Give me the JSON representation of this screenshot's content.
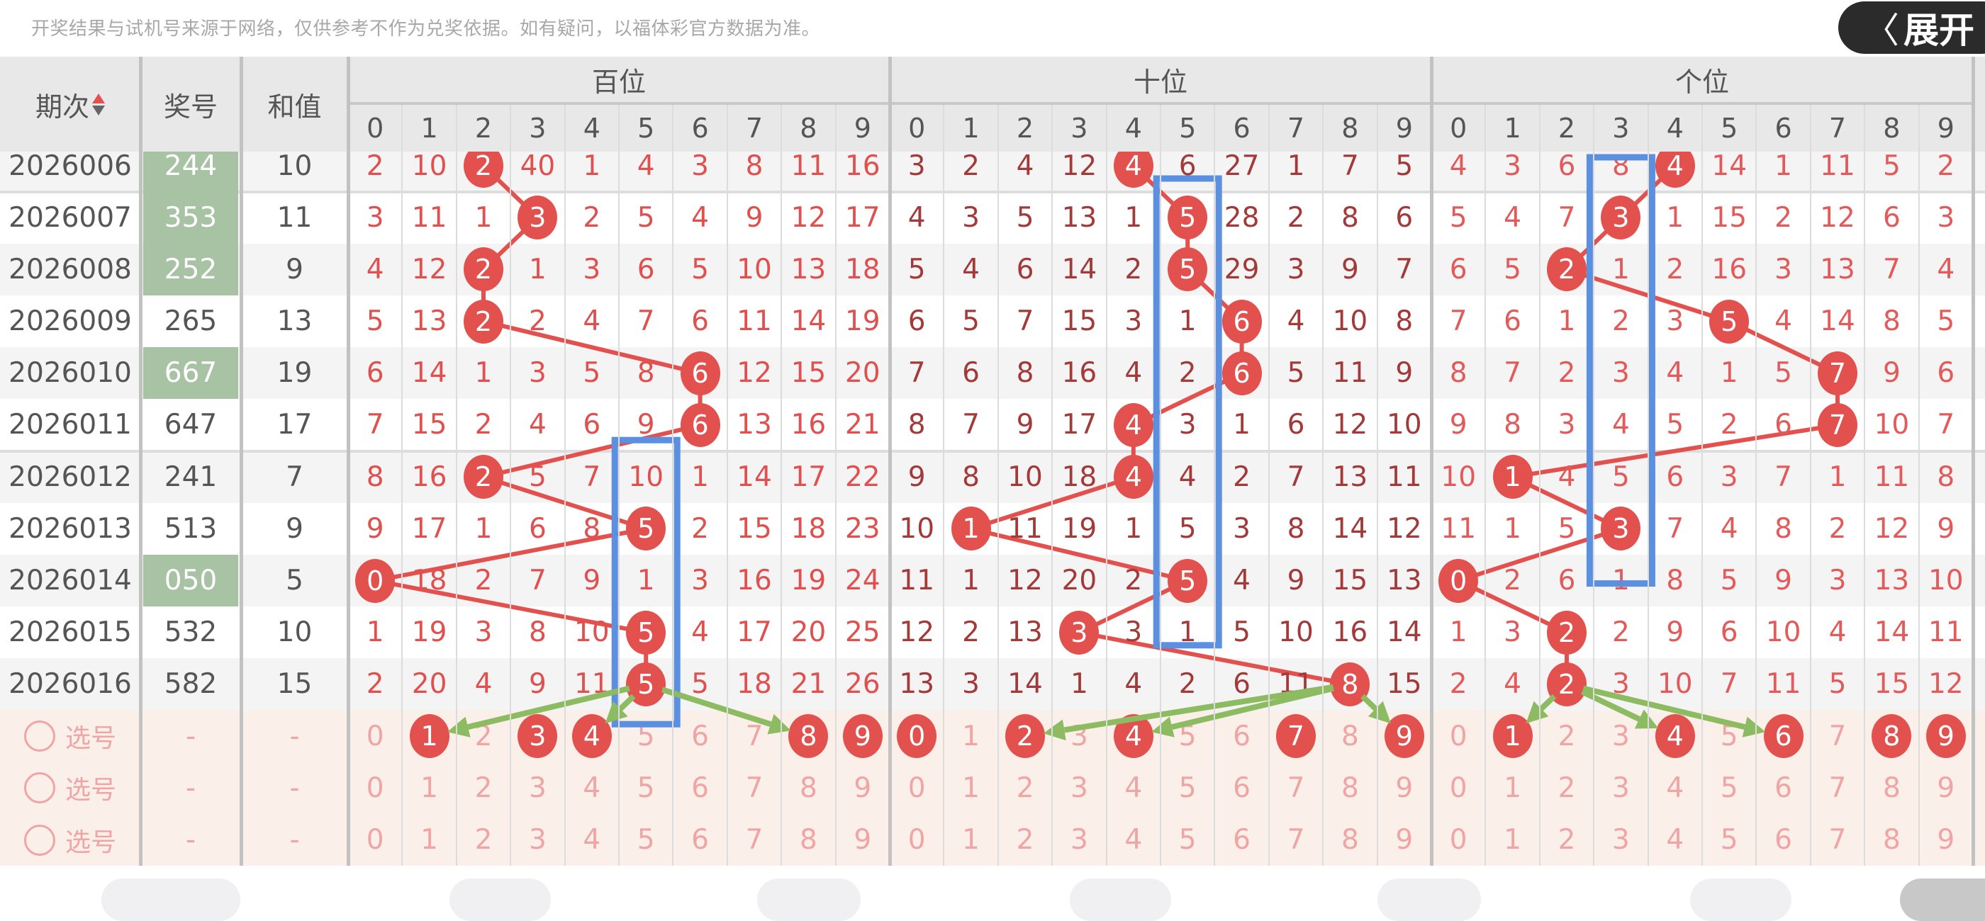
{
  "notice": "开奖结果与试机号来源于网络，仅供参考不作为兑奖依据。如有疑问，以福体彩官方数据为准。",
  "header": {
    "period": "期次",
    "number": "奖号",
    "sum": "和值",
    "positions": [
      "百位",
      "十位",
      "个位"
    ],
    "digits": [
      "0",
      "1",
      "2",
      "3",
      "4",
      "5",
      "6",
      "7",
      "8",
      "9"
    ],
    "sort_icon": "sort-up-down-icon"
  },
  "rows": [
    {
      "period": "2026006",
      "number": "244",
      "sum": "10",
      "highlight": true,
      "hundreds": [
        2,
        10,
        2,
        40,
        1,
        4,
        3,
        8,
        11,
        16
      ],
      "tens": [
        3,
        2,
        4,
        12,
        4,
        6,
        27,
        1,
        7,
        5
      ],
      "units": [
        4,
        3,
        6,
        8,
        4,
        14,
        1,
        11,
        5,
        2
      ]
    },
    {
      "period": "2026007",
      "number": "353",
      "sum": "11",
      "highlight": true,
      "hundreds": [
        3,
        11,
        1,
        3,
        2,
        5,
        4,
        9,
        12,
        17
      ],
      "tens": [
        4,
        3,
        5,
        13,
        1,
        5,
        28,
        2,
        8,
        6
      ],
      "units": [
        5,
        4,
        7,
        3,
        1,
        15,
        2,
        12,
        6,
        3
      ]
    },
    {
      "period": "2026008",
      "number": "252",
      "sum": "9",
      "highlight": true,
      "hundreds": [
        4,
        12,
        2,
        1,
        3,
        6,
        5,
        10,
        13,
        18
      ],
      "tens": [
        5,
        4,
        6,
        14,
        2,
        5,
        29,
        3,
        9,
        7
      ],
      "units": [
        6,
        5,
        2,
        1,
        2,
        16,
        3,
        13,
        7,
        4
      ]
    },
    {
      "period": "2026009",
      "number": "265",
      "sum": "13",
      "highlight": false,
      "hundreds": [
        5,
        13,
        2,
        2,
        4,
        7,
        6,
        11,
        14,
        19
      ],
      "tens": [
        6,
        5,
        7,
        15,
        3,
        1,
        6,
        4,
        10,
        8
      ],
      "units": [
        7,
        6,
        1,
        2,
        3,
        5,
        4,
        14,
        8,
        5
      ]
    },
    {
      "period": "2026010",
      "number": "667",
      "sum": "19",
      "highlight": true,
      "hundreds": [
        6,
        14,
        1,
        3,
        5,
        8,
        6,
        12,
        15,
        20
      ],
      "tens": [
        7,
        6,
        8,
        16,
        4,
        2,
        6,
        5,
        11,
        9
      ],
      "units": [
        8,
        7,
        2,
        3,
        4,
        1,
        5,
        7,
        9,
        6
      ]
    },
    {
      "period": "2026011",
      "number": "647",
      "sum": "17",
      "highlight": false,
      "hundreds": [
        7,
        15,
        2,
        4,
        6,
        9,
        6,
        13,
        16,
        21
      ],
      "tens": [
        8,
        7,
        9,
        17,
        4,
        3,
        1,
        6,
        12,
        10
      ],
      "units": [
        9,
        8,
        3,
        4,
        5,
        2,
        6,
        7,
        10,
        7
      ]
    },
    {
      "period": "2026012",
      "number": "241",
      "sum": "7",
      "highlight": false,
      "hundreds": [
        8,
        16,
        2,
        5,
        7,
        10,
        1,
        14,
        17,
        22
      ],
      "tens": [
        9,
        8,
        10,
        18,
        4,
        4,
        2,
        7,
        13,
        11
      ],
      "units": [
        10,
        1,
        4,
        5,
        6,
        3,
        7,
        1,
        11,
        8
      ]
    },
    {
      "period": "2026013",
      "number": "513",
      "sum": "9",
      "highlight": false,
      "hundreds": [
        9,
        17,
        1,
        6,
        8,
        5,
        2,
        15,
        18,
        23
      ],
      "tens": [
        10,
        1,
        11,
        19,
        1,
        5,
        3,
        8,
        14,
        12
      ],
      "units": [
        11,
        1,
        5,
        3,
        7,
        4,
        8,
        2,
        12,
        9
      ]
    },
    {
      "period": "2026014",
      "number": "050",
      "sum": "5",
      "highlight": true,
      "hundreds": [
        0,
        18,
        2,
        7,
        9,
        1,
        3,
        16,
        19,
        24
      ],
      "tens": [
        11,
        1,
        12,
        20,
        2,
        5,
        4,
        9,
        15,
        13
      ],
      "units": [
        0,
        2,
        6,
        1,
        8,
        5,
        9,
        3,
        13,
        10
      ]
    },
    {
      "period": "2026015",
      "number": "532",
      "sum": "10",
      "highlight": false,
      "hundreds": [
        1,
        19,
        3,
        8,
        10,
        5,
        4,
        17,
        20,
        25
      ],
      "tens": [
        12,
        2,
        13,
        3,
        3,
        1,
        5,
        10,
        16,
        14
      ],
      "units": [
        1,
        3,
        2,
        2,
        9,
        6,
        10,
        4,
        14,
        11
      ]
    },
    {
      "period": "2026016",
      "number": "582",
      "sum": "15",
      "highlight": false,
      "hundreds": [
        2,
        20,
        4,
        9,
        11,
        5,
        5,
        18,
        21,
        26
      ],
      "tens": [
        13,
        3,
        14,
        1,
        4,
        2,
        6,
        11,
        8,
        15
      ],
      "units": [
        2,
        4,
        2,
        3,
        10,
        7,
        11,
        5,
        15,
        12
      ]
    }
  ],
  "select_rows": [
    {
      "label": "选号",
      "number": "-",
      "sum": "-",
      "selected": [
        [
          1,
          3,
          4,
          8,
          9
        ],
        [
          0,
          2,
          4,
          7,
          9
        ],
        [
          1,
          4,
          6,
          8,
          9
        ]
      ]
    },
    {
      "label": "选号",
      "number": "-",
      "sum": "-",
      "selected": [
        [],
        [],
        []
      ]
    },
    {
      "label": "选号",
      "number": "-",
      "sum": "-",
      "selected": [
        [],
        [],
        []
      ]
    }
  ],
  "annotations": {
    "boxes": [
      {
        "position": "百位",
        "digit": 5,
        "from": "2026012",
        "to": "选号"
      },
      {
        "position": "十位",
        "digit": 5,
        "from": "2026006",
        "to": "2026015"
      },
      {
        "position": "个位",
        "digit": 3,
        "from": "2026006",
        "to": "2026014"
      }
    ],
    "arrows": [
      {
        "position": "百位",
        "from_digit": 5,
        "to_digits": [
          1,
          4,
          8
        ]
      },
      {
        "position": "十位",
        "from_digit": 8,
        "to_digits": [
          2,
          4,
          9
        ]
      },
      {
        "position": "个位",
        "from_digit": 2,
        "to_digits": [
          1,
          4,
          6
        ]
      }
    ]
  },
  "expand_button": {
    "label": "展开",
    "icon": "chevron-left-icon"
  },
  "colors": {
    "ball": "#e2514d",
    "highlight_number": "#a8c2a4",
    "hundreds_text": "#e0504f",
    "tens_text": "#a33a3a",
    "units_text": "#e25a5a",
    "select_text": "#f0a5a5",
    "select_bg": "#fbefe9",
    "box": "#5b8fe0",
    "arrow": "#8dbb62"
  }
}
